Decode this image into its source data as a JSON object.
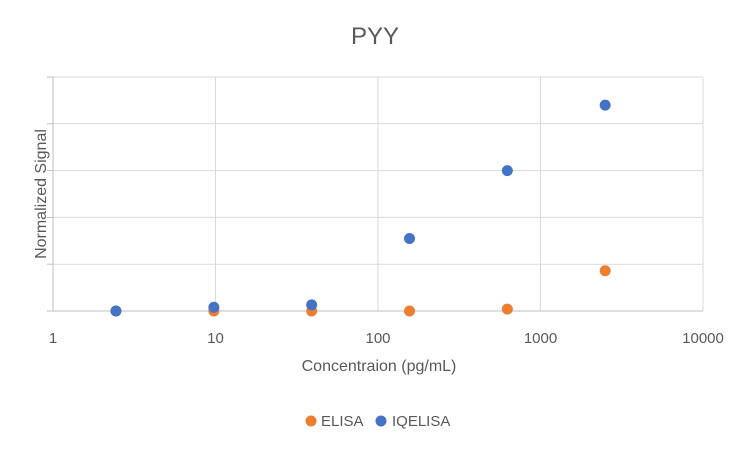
{
  "chart_data": {
    "type": "scatter",
    "title": "PYY",
    "xlabel": "Concentraion (pg/mL)",
    "ylabel": "Normalized Signal",
    "xscale": "log",
    "xlim": [
      1,
      10000
    ],
    "ylim": [
      0,
      5
    ],
    "xtick_labels": [
      "1",
      "10",
      "100",
      "1000",
      "10000"
    ],
    "xticks": [
      1,
      10,
      100,
      1000,
      10000
    ],
    "yticks": [
      0,
      1,
      2,
      3,
      4,
      5
    ],
    "grid": true,
    "legend_position": "bottom",
    "series": [
      {
        "name": "ELISA",
        "color": "#ED7D31",
        "x": [
          2.44,
          9.77,
          39.06,
          156.25,
          625,
          2500
        ],
        "y": [
          0.0,
          0.0,
          0.0,
          0.0,
          0.04,
          0.86
        ]
      },
      {
        "name": "IQELISA",
        "color": "#4472C4",
        "x": [
          2.44,
          9.77,
          39.06,
          156.25,
          625,
          2500
        ],
        "y": [
          0.0,
          0.08,
          0.13,
          1.55,
          3.0,
          4.4
        ]
      }
    ]
  }
}
